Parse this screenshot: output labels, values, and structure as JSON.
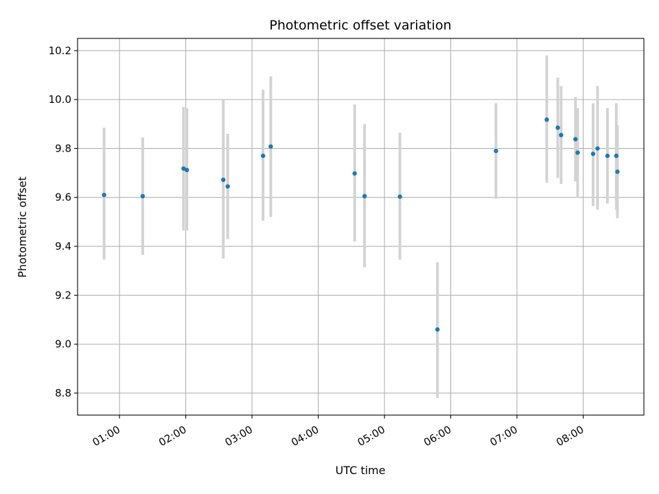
{
  "chart_data": {
    "type": "scatter",
    "title": "Photometric offset variation",
    "xlabel": "UTC time",
    "ylabel": "Photometric offset",
    "xlim": [
      "00:22",
      "08:55"
    ],
    "ylim": [
      8.71,
      10.25
    ],
    "x_ticks": [
      "01:00",
      "02:00",
      "03:00",
      "04:00",
      "05:00",
      "06:00",
      "07:00",
      "08:00"
    ],
    "y_ticks": [
      "8.8",
      "9.0",
      "9.2",
      "9.4",
      "9.6",
      "9.8",
      "10.0",
      "10.2"
    ],
    "y_tick_values": [
      8.8,
      9.0,
      9.2,
      9.4,
      9.6,
      9.8,
      10.0,
      10.2
    ],
    "grid": true,
    "marker_color": "#1f77b4",
    "errorbar_color": "#d3d3d3",
    "points": [
      {
        "t": "00:46",
        "y": 9.61,
        "lo": 9.345,
        "hi": 9.885
      },
      {
        "t": "01:21",
        "y": 9.605,
        "lo": 9.365,
        "hi": 9.845
      },
      {
        "t": "01:58",
        "y": 9.718,
        "lo": 9.465,
        "hi": 9.97
      },
      {
        "t": "02:01",
        "y": 9.712,
        "lo": 9.465,
        "hi": 9.965
      },
      {
        "t": "02:34",
        "y": 9.672,
        "lo": 9.35,
        "hi": 10.0
      },
      {
        "t": "02:38",
        "y": 9.645,
        "lo": 9.43,
        "hi": 9.86
      },
      {
        "t": "03:10",
        "y": 9.77,
        "lo": 9.505,
        "hi": 10.04
      },
      {
        "t": "03:17",
        "y": 9.808,
        "lo": 9.52,
        "hi": 10.095
      },
      {
        "t": "04:33",
        "y": 9.698,
        "lo": 9.42,
        "hi": 9.98
      },
      {
        "t": "04:42",
        "y": 9.605,
        "lo": 9.315,
        "hi": 9.9
      },
      {
        "t": "05:14",
        "y": 9.603,
        "lo": 9.345,
        "hi": 9.865
      },
      {
        "t": "05:48",
        "y": 9.06,
        "lo": 8.78,
        "hi": 9.335
      },
      {
        "t": "06:41",
        "y": 9.79,
        "lo": 9.595,
        "hi": 9.985
      },
      {
        "t": "07:27",
        "y": 9.918,
        "lo": 9.66,
        "hi": 10.18
      },
      {
        "t": "07:37",
        "y": 9.885,
        "lo": 9.68,
        "hi": 10.09
      },
      {
        "t": "07:40",
        "y": 9.855,
        "lo": 9.655,
        "hi": 10.055
      },
      {
        "t": "07:53",
        "y": 9.838,
        "lo": 9.665,
        "hi": 10.01
      },
      {
        "t": "07:55",
        "y": 9.783,
        "lo": 9.6,
        "hi": 9.965
      },
      {
        "t": "08:09",
        "y": 9.778,
        "lo": 9.565,
        "hi": 9.985
      },
      {
        "t": "08:13",
        "y": 9.8,
        "lo": 9.55,
        "hi": 10.055
      },
      {
        "t": "08:22",
        "y": 9.77,
        "lo": 9.575,
        "hi": 9.965
      },
      {
        "t": "08:30",
        "y": 9.77,
        "lo": 9.55,
        "hi": 9.985
      },
      {
        "t": "08:31",
        "y": 9.705,
        "lo": 9.515,
        "hi": 9.895
      }
    ]
  }
}
